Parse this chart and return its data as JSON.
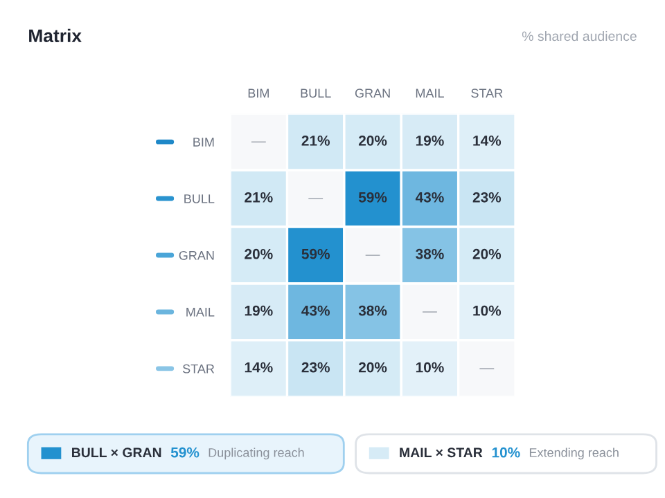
{
  "chart_data": {
    "type": "heatmap",
    "title": "Matrix",
    "subtitle": "% shared audience",
    "categories": [
      "BIM",
      "BULL",
      "GRAN",
      "MAIL",
      "STAR"
    ],
    "y_categories": [
      "BIM",
      "BULL",
      "GRAN",
      "MAIL",
      "STAR"
    ],
    "cells": [
      [
        null,
        21,
        20,
        19,
        14
      ],
      [
        21,
        null,
        59,
        43,
        23
      ],
      [
        20,
        59,
        null,
        38,
        20
      ],
      [
        19,
        43,
        38,
        null,
        10
      ],
      [
        14,
        23,
        20,
        10,
        null
      ]
    ],
    "cell_labels": [
      [
        "—",
        "21%",
        "20%",
        "19%",
        "14%"
      ],
      [
        "21%",
        "—",
        "59%",
        "43%",
        "23%"
      ],
      [
        "20%",
        "59%",
        "—",
        "38%",
        "20%"
      ],
      [
        "19%",
        "43%",
        "38%",
        "—",
        "10%"
      ],
      [
        "14%",
        "23%",
        "20%",
        "10%",
        "—"
      ]
    ],
    "annotations": [
      "BULL × GRAN",
      "59%",
      "Duplicating reach",
      "MAIL × STAR",
      "10%",
      "Extending reach"
    ]
  }
}
